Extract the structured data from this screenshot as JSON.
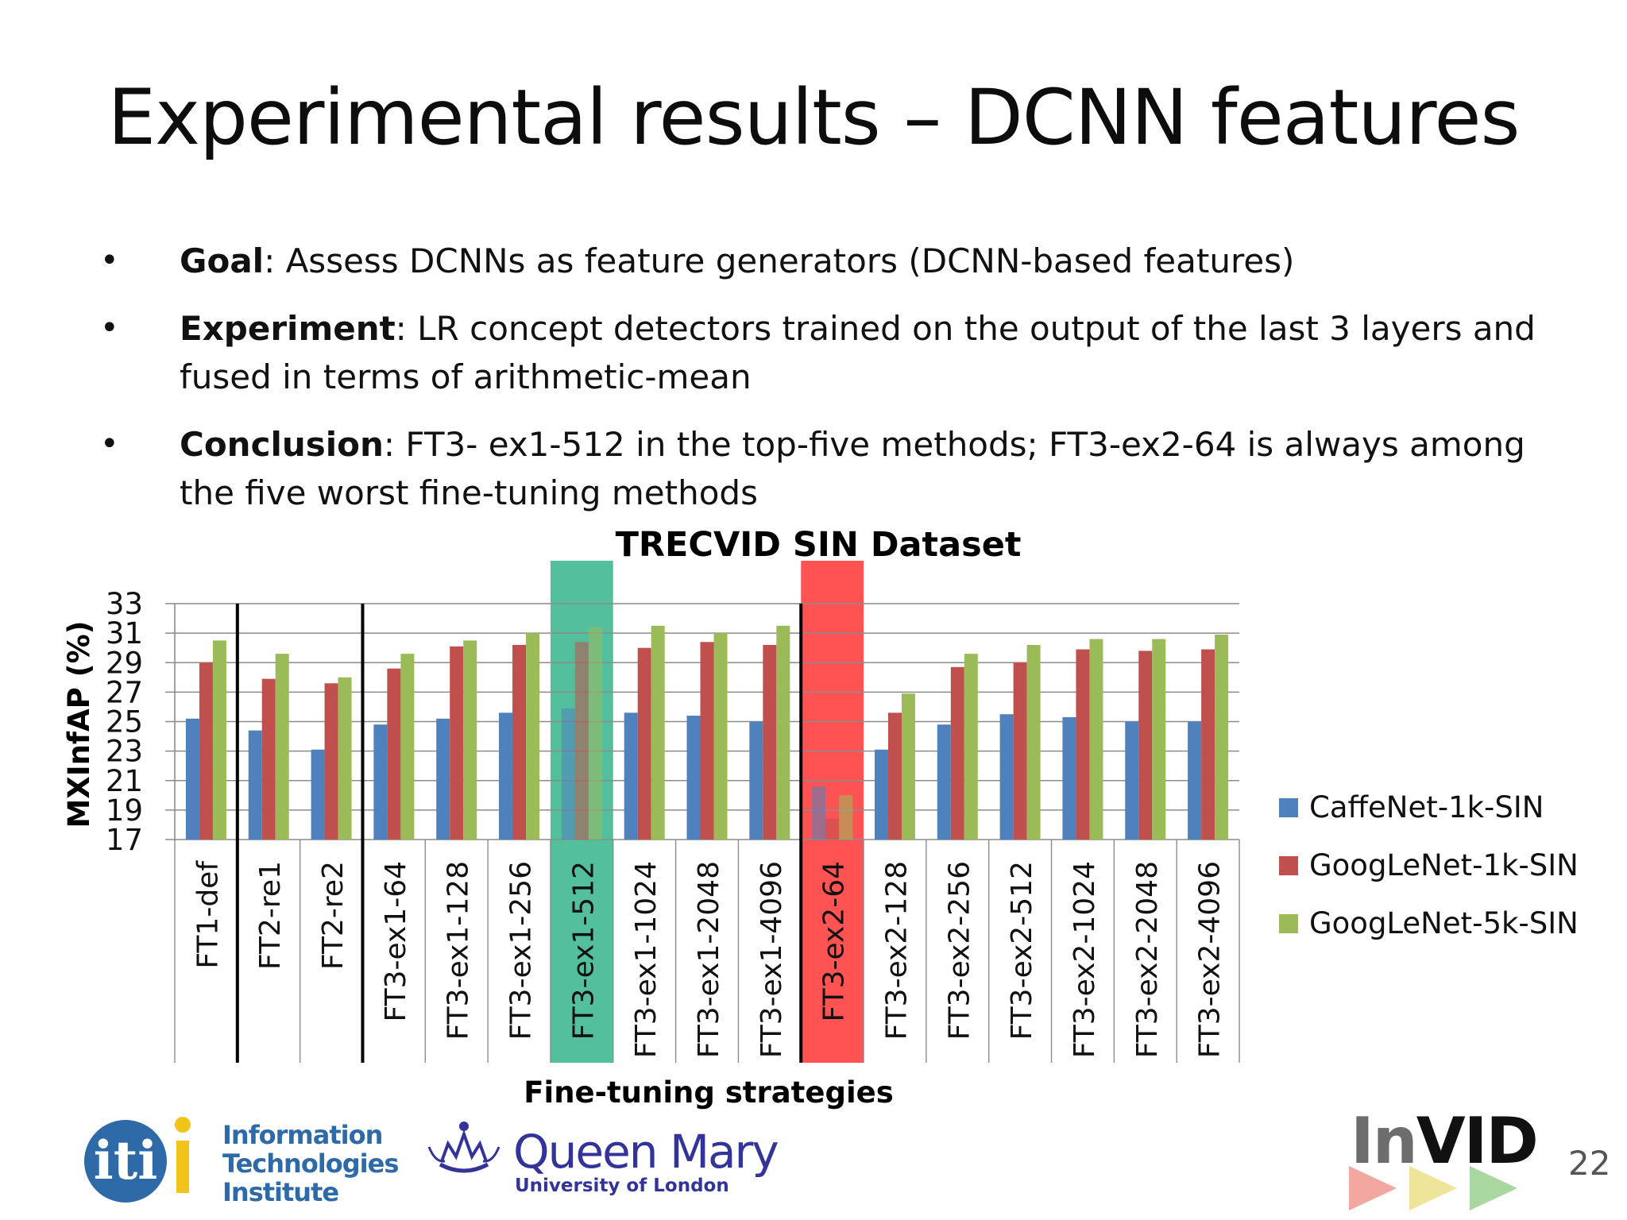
{
  "slide": {
    "title": "Experimental results – DCNN features",
    "page_number": "22"
  },
  "bullets": [
    {
      "label": "Goal",
      "text": ": Assess DCNNs as feature generators (DCNN-based features)"
    },
    {
      "label": "Experiment",
      "text": ": LR concept detectors trained on the output of the last 3 layers and fused in terms of arithmetic-mean"
    },
    {
      "label": "Conclusion",
      "text": ": FT3- ex1-512 in the top-five methods; FT3-ex2-64 is always among the five worst fine-tuning methods"
    }
  ],
  "logos": {
    "iti_mark": "iti",
    "iti_lines": [
      "Information",
      "Technologies",
      "Institute"
    ],
    "qm_name": "Queen Mary",
    "qm_sub": "University of London",
    "invid_in": "In",
    "invid_vid": "VID"
  },
  "colors": {
    "caffenet": "#4f81bd",
    "googlenet1k": "#c0504d",
    "googlenet5k": "#9bbb59",
    "highlight_good": "#3cb690",
    "highlight_bad": "#ff3b3b"
  },
  "chart_data": {
    "type": "bar",
    "title": "TRECVID SIN Dataset",
    "xlabel": "Fine-tuning strategies",
    "ylabel": "MXInfAP (%)",
    "ylim": [
      17,
      33
    ],
    "yticks": [
      17,
      19,
      21,
      23,
      25,
      27,
      29,
      31,
      33
    ],
    "grid": true,
    "legend_position": "right",
    "categories": [
      "FT1-def",
      "FT2-re1",
      "FT2-re2",
      "FT3-ex1-64",
      "FT3-ex1-128",
      "FT3-ex1-256",
      "FT3-ex1-512",
      "FT3-ex1-1024",
      "FT3-ex1-2048",
      "FT3-ex1-4096",
      "FT3-ex2-64",
      "FT3-ex2-128",
      "FT3-ex2-256",
      "FT3-ex2-512",
      "FT3-ex2-1024",
      "FT3-ex2-2048",
      "FT3-ex2-4096"
    ],
    "series": [
      {
        "name": "CaffeNet-1k-SIN",
        "values": [
          25.2,
          24.4,
          23.1,
          24.8,
          25.2,
          25.6,
          25.9,
          25.6,
          25.4,
          25.0,
          20.6,
          23.1,
          24.8,
          25.5,
          25.3,
          25.0,
          25.0
        ]
      },
      {
        "name": "GoogLeNet-1k-SIN",
        "values": [
          29.0,
          27.9,
          27.6,
          28.6,
          30.1,
          30.2,
          30.4,
          30.0,
          30.4,
          30.2,
          18.4,
          25.6,
          28.7,
          29.0,
          29.9,
          29.8,
          29.9
        ]
      },
      {
        "name": "GoogLeNet-5k-SIN",
        "values": [
          30.5,
          29.6,
          28.0,
          29.6,
          30.5,
          31.0,
          31.4,
          31.5,
          31.0,
          31.5,
          20.0,
          26.9,
          29.6,
          30.2,
          30.6,
          30.6,
          30.9
        ]
      }
    ],
    "highlights": [
      {
        "category": "FT3-ex1-512",
        "kind": "good"
      },
      {
        "category": "FT3-ex2-64",
        "kind": "bad"
      }
    ],
    "separators_after": [
      "FT1-def",
      "FT2-re2",
      "FT3-ex1-4096"
    ]
  }
}
